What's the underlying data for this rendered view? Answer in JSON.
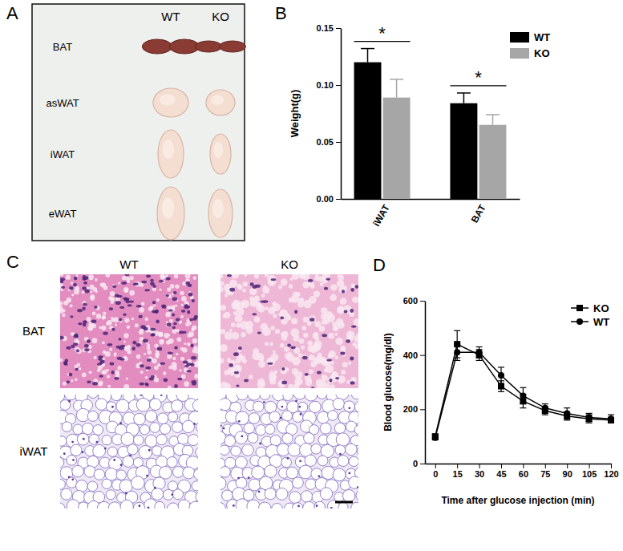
{
  "panels": {
    "A": {
      "title": "A",
      "columns": [
        "WT",
        "KO"
      ],
      "rows": [
        "BAT",
        "asWAT",
        "iWAT",
        "eWAT"
      ]
    },
    "C": {
      "title": "C",
      "columns": [
        "WT",
        "KO"
      ],
      "rows": [
        "BAT",
        "iWAT"
      ]
    }
  },
  "chart_data": [
    {
      "title": "B",
      "type": "bar",
      "categories": [
        "iWAT",
        "BAT"
      ],
      "series": [
        {
          "name": "WT",
          "color": "#000000",
          "values": [
            0.12,
            0.084
          ],
          "errors": [
            0.012,
            0.009
          ]
        },
        {
          "name": "KO",
          "color": "#a6a6a6",
          "values": [
            0.089,
            0.065
          ],
          "errors": [
            0.016,
            0.009
          ]
        }
      ],
      "y_label": "Weight(g)",
      "ylim": [
        0,
        0.15
      ],
      "yticks": [
        {
          "value": 0,
          "label": "0.00"
        },
        {
          "value": 0.05,
          "label": "0.05"
        },
        {
          "value": 0.1,
          "label": "0.10"
        },
        {
          "value": 0.15,
          "label": "0.15"
        }
      ],
      "annotations": [
        {
          "text": "*",
          "x": "iWAT"
        },
        {
          "text": "*",
          "x": "BAT"
        }
      ],
      "legend": "top-right"
    },
    {
      "title": "D",
      "type": "line",
      "x": [
        0,
        15,
        30,
        45,
        60,
        75,
        90,
        105,
        120
      ],
      "series": [
        {
          "name": "KO",
          "color": "#000000",
          "marker": "square",
          "values": [
            100,
            440,
            400,
            285,
            230,
            195,
            175,
            165,
            160
          ],
          "errors": [
            8,
            50,
            20,
            20,
            25,
            15,
            15,
            15,
            10
          ]
        },
        {
          "name": "WT",
          "color": "#000000",
          "marker": "circle",
          "values": [
            95,
            410,
            410,
            325,
            250,
            205,
            185,
            170,
            165
          ],
          "errors": [
            8,
            30,
            20,
            30,
            30,
            15,
            20,
            15,
            15
          ]
        }
      ],
      "x_label": "Time after glucose injection (min)",
      "y_label": "Blood glucose(mg/dl)",
      "xlim": [
        -7,
        120
      ],
      "xticks": [
        0,
        15,
        30,
        45,
        60,
        75,
        90,
        105,
        120
      ],
      "ylim": [
        0,
        600
      ],
      "yticks": [
        0,
        200,
        400,
        600
      ],
      "legend": "top-right"
    }
  ]
}
